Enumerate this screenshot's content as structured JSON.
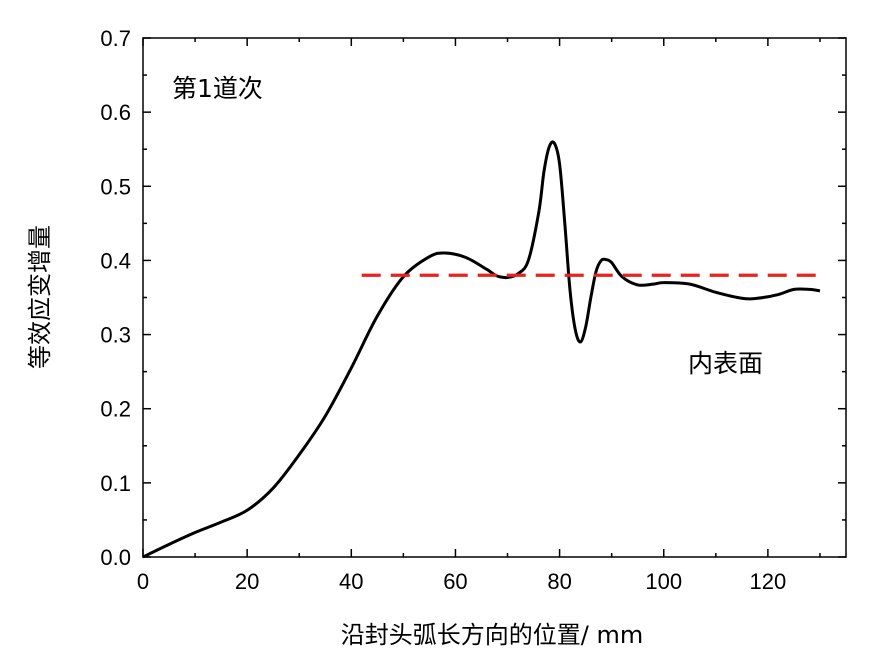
{
  "chart_data": {
    "type": "line",
    "xlabel": "沿封头弧长方向的位置/ mm",
    "ylabel": "等效应变增量",
    "xlim": [
      0,
      135
    ],
    "ylim": [
      0,
      0.7
    ],
    "xticks": [
      0,
      20,
      40,
      60,
      80,
      100,
      120
    ],
    "yticks": [
      0.0,
      0.1,
      0.2,
      0.3,
      0.4,
      0.5,
      0.6,
      0.7
    ],
    "xtick_labels": [
      "0",
      "20",
      "40",
      "60",
      "80",
      "100",
      "120"
    ],
    "ytick_labels": [
      "0.0",
      "0.1",
      "0.2",
      "0.3",
      "0.4",
      "0.5",
      "0.6",
      "0.7"
    ],
    "grid": false,
    "annotations": [
      "第1道次",
      "内表面"
    ],
    "series": [
      {
        "style": "solid",
        "color": "#000000",
        "x": [
          0,
          5,
          10,
          15,
          20,
          25,
          30,
          35,
          40,
          45,
          50,
          55,
          58,
          62,
          66,
          68,
          70,
          72,
          74,
          76,
          77,
          78,
          79,
          80,
          81,
          82,
          83,
          84,
          85,
          86,
          87,
          88,
          89,
          90,
          92,
          95,
          98,
          100,
          105,
          110,
          115,
          118,
          122,
          125,
          128,
          130
        ],
        "y": [
          0.0,
          0.017,
          0.033,
          0.047,
          0.063,
          0.093,
          0.138,
          0.19,
          0.255,
          0.325,
          0.378,
          0.405,
          0.41,
          0.404,
          0.388,
          0.379,
          0.377,
          0.382,
          0.4,
          0.465,
          0.52,
          0.553,
          0.558,
          0.53,
          0.45,
          0.36,
          0.307,
          0.29,
          0.31,
          0.35,
          0.385,
          0.4,
          0.401,
          0.397,
          0.378,
          0.367,
          0.368,
          0.37,
          0.368,
          0.357,
          0.349,
          0.349,
          0.354,
          0.361,
          0.361,
          0.359
        ]
      },
      {
        "style": "dashed",
        "color": "#e8221c",
        "x": [
          42,
          130
        ],
        "y": [
          0.38,
          0.38
        ]
      }
    ]
  }
}
